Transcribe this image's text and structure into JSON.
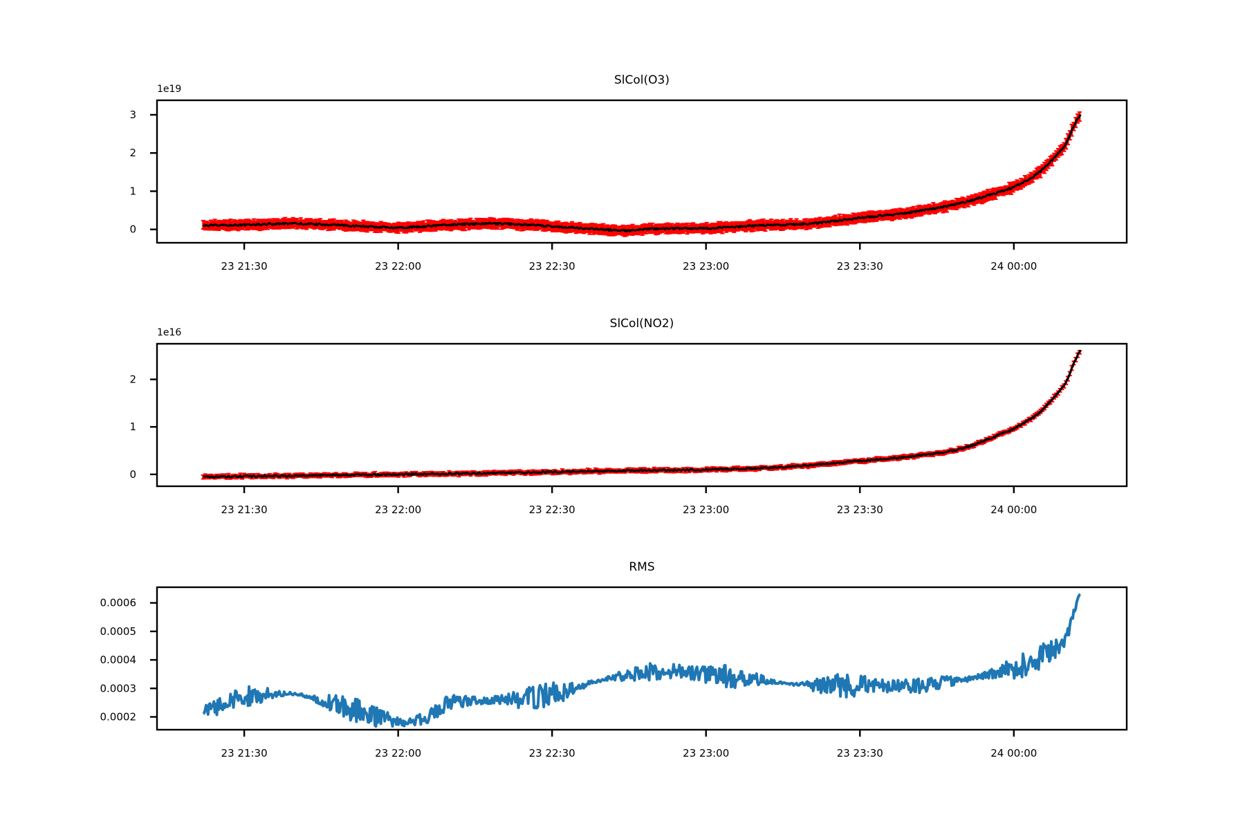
{
  "chart_data": [
    {
      "type": "line",
      "title": "SlCol(O3)",
      "xlabel": "",
      "ylabel": "",
      "y_offset_label": "1e19",
      "x_axis": "time",
      "x_tick_values": [
        "2023-01-23T21:30",
        "2023-01-23T22:00",
        "2023-01-23T22:30",
        "2023-01-23T23:00",
        "2023-01-23T23:30",
        "2023-01-24T00:00"
      ],
      "x_tick_labels": [
        "23 21:30",
        "23 22:00",
        "23 22:30",
        "23 23:00",
        "23 23:30",
        "24 00:00"
      ],
      "xlim": [
        "2023-01-23T21:13",
        "2023-01-24T00:22"
      ],
      "ylim": [
        -0.35,
        3.38
      ],
      "y_ticks": [
        0,
        1,
        2,
        3
      ],
      "y_tick_labels": [
        "0",
        "1",
        "2",
        "3"
      ],
      "grid": false,
      "series": [
        {
          "color": "#000000",
          "error_color": "#ff0000",
          "error_band": 0.12,
          "x": [
            "2023-01-23T21:22",
            "2023-01-23T21:30",
            "2023-01-23T21:40",
            "2023-01-23T21:50",
            "2023-01-23T22:00",
            "2023-01-23T22:10",
            "2023-01-23T22:20",
            "2023-01-23T22:30",
            "2023-01-23T22:40",
            "2023-01-23T22:45",
            "2023-01-23T22:50",
            "2023-01-23T23:00",
            "2023-01-23T23:10",
            "2023-01-23T23:20",
            "2023-01-23T23:30",
            "2023-01-23T23:40",
            "2023-01-23T23:50",
            "2023-01-24T00:00",
            "2023-01-24T00:05",
            "2023-01-24T00:10",
            "2023-01-24T00:13"
          ],
          "y": [
            0.1,
            0.12,
            0.15,
            0.1,
            0.05,
            0.12,
            0.15,
            0.08,
            0.0,
            -0.03,
            0.02,
            0.03,
            0.1,
            0.15,
            0.3,
            0.45,
            0.7,
            1.1,
            1.5,
            2.2,
            3.0
          ]
        }
      ]
    },
    {
      "type": "line",
      "title": "SlCol(NO2)",
      "xlabel": "",
      "ylabel": "",
      "y_offset_label": "1e16",
      "x_axis": "time",
      "x_tick_values": [
        "2023-01-23T21:30",
        "2023-01-23T22:00",
        "2023-01-23T22:30",
        "2023-01-23T23:00",
        "2023-01-23T23:30",
        "2023-01-24T00:00"
      ],
      "x_tick_labels": [
        "23 21:30",
        "23 22:00",
        "23 22:30",
        "23 23:00",
        "23 23:30",
        "24 00:00"
      ],
      "xlim": [
        "2023-01-23T21:13",
        "2023-01-24T00:22"
      ],
      "ylim": [
        -0.25,
        2.75
      ],
      "y_ticks": [
        0,
        1,
        2
      ],
      "y_tick_labels": [
        "0",
        "1",
        "2"
      ],
      "grid": false,
      "series": [
        {
          "color": "#000000",
          "error_color": "#ff0000",
          "error_band": 0.04,
          "x": [
            "2023-01-23T21:22",
            "2023-01-23T21:30",
            "2023-01-23T21:45",
            "2023-01-23T22:00",
            "2023-01-23T22:15",
            "2023-01-23T22:30",
            "2023-01-23T22:45",
            "2023-01-23T23:00",
            "2023-01-23T23:15",
            "2023-01-23T23:30",
            "2023-01-23T23:40",
            "2023-01-23T23:50",
            "2023-01-24T00:00",
            "2023-01-24T00:05",
            "2023-01-24T00:10",
            "2023-01-24T00:13"
          ],
          "y": [
            -0.05,
            -0.04,
            -0.02,
            0.0,
            0.02,
            0.05,
            0.08,
            0.1,
            0.15,
            0.28,
            0.38,
            0.55,
            0.95,
            1.3,
            1.9,
            2.6
          ]
        }
      ]
    },
    {
      "type": "line",
      "title": "RMS",
      "xlabel": "",
      "ylabel": "",
      "x_axis": "time",
      "x_tick_values": [
        "2023-01-23T21:30",
        "2023-01-23T22:00",
        "2023-01-23T22:30",
        "2023-01-23T23:00",
        "2023-01-23T23:30",
        "2023-01-24T00:00"
      ],
      "x_tick_labels": [
        "23 21:30",
        "23 22:00",
        "23 22:30",
        "23 23:00",
        "23 23:30",
        "24 00:00"
      ],
      "xlim": [
        "2023-01-23T21:13",
        "2023-01-24T00:22"
      ],
      "ylim": [
        0.000155,
        0.000655
      ],
      "y_ticks": [
        0.0002,
        0.0003,
        0.0004,
        0.0005,
        0.0006
      ],
      "y_tick_labels": [
        "0.0002",
        "0.0003",
        "0.0004",
        "0.0005",
        "0.0006"
      ],
      "grid": false,
      "series": [
        {
          "color": "#1f77b4",
          "noise": 2.5e-05,
          "x": [
            "2023-01-23T21:22",
            "2023-01-23T21:30",
            "2023-01-23T21:40",
            "2023-01-23T21:50",
            "2023-01-23T22:00",
            "2023-01-23T22:05",
            "2023-01-23T22:10",
            "2023-01-23T22:20",
            "2023-01-23T22:30",
            "2023-01-23T22:40",
            "2023-01-23T22:50",
            "2023-01-23T23:00",
            "2023-01-23T23:10",
            "2023-01-23T23:20",
            "2023-01-23T23:30",
            "2023-01-23T23:40",
            "2023-01-23T23:50",
            "2023-01-24T00:00",
            "2023-01-24T00:05",
            "2023-01-24T00:10",
            "2023-01-24T00:13"
          ],
          "y": [
            0.00022,
            0.00027,
            0.00028,
            0.00023,
            0.000185,
            0.000195,
            0.00025,
            0.00026,
            0.00028,
            0.00033,
            0.00036,
            0.00035,
            0.00033,
            0.00031,
            0.00031,
            0.00031,
            0.00033,
            0.00037,
            0.00041,
            0.00047,
            0.00063
          ]
        }
      ]
    }
  ]
}
